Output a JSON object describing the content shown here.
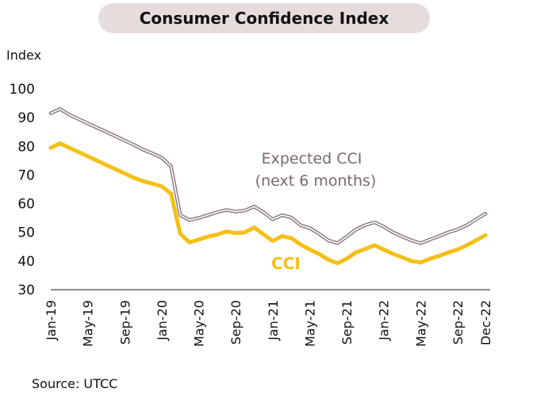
{
  "title": "Consumer Confidence Index",
  "source": "Source: UTCC",
  "chart_data": {
    "type": "line",
    "title": "Consumer Confidence Index",
    "xlabel": "",
    "ylabel": "Index",
    "ylim": [
      30,
      100
    ],
    "yticks": [
      30,
      40,
      50,
      60,
      70,
      80,
      90,
      100
    ],
    "grid": false,
    "x_tick_labels": [
      "Jan-19",
      "May-19",
      "Sep-19",
      "Jan-20",
      "May-20",
      "Sep-20",
      "Jan-21",
      "May-21",
      "Sep-21",
      "Jan-22",
      "May-22",
      "Sep-22",
      "Dec-22"
    ],
    "x": [
      "Jan-19",
      "Feb-19",
      "Mar-19",
      "Apr-19",
      "May-19",
      "Jun-19",
      "Jul-19",
      "Aug-19",
      "Sep-19",
      "Oct-19",
      "Nov-19",
      "Dec-19",
      "Jan-20",
      "Feb-20",
      "Mar-20",
      "Apr-20",
      "May-20",
      "Jun-20",
      "Jul-20",
      "Aug-20",
      "Sep-20",
      "Oct-20",
      "Nov-20",
      "Dec-20",
      "Jan-21",
      "Feb-21",
      "Mar-21",
      "Apr-21",
      "May-21",
      "Jun-21",
      "Jul-21",
      "Aug-21",
      "Sep-21",
      "Oct-21",
      "Nov-21",
      "Dec-21",
      "Jan-22",
      "Feb-22",
      "Mar-22",
      "Apr-22",
      "May-22",
      "Jun-22",
      "Jul-22",
      "Aug-22",
      "Sep-22",
      "Oct-22",
      "Nov-22",
      "Dec-22"
    ],
    "series": [
      {
        "name": "Expected CCI (next 6 months)",
        "label_line1": "Expected CCI",
        "label_line2": "(next 6 months)",
        "color": "#8a7a7a",
        "values": [
          91.5,
          93.0,
          91.0,
          89.5,
          88.0,
          86.5,
          85.0,
          83.5,
          82.0,
          80.5,
          78.8,
          77.5,
          76.0,
          73.0,
          56.0,
          54.3,
          55.0,
          56.0,
          57.0,
          57.8,
          57.2,
          57.6,
          59.0,
          57.0,
          54.5,
          56.0,
          55.2,
          52.5,
          51.5,
          49.5,
          47.2,
          46.2,
          48.5,
          51.0,
          52.5,
          53.5,
          52.0,
          50.0,
          48.5,
          47.2,
          46.2,
          47.5,
          48.7,
          50.0,
          51.0,
          52.5,
          54.5,
          56.5
        ]
      },
      {
        "name": "CCI",
        "label": "CCI",
        "color": "#f5c015",
        "values": [
          79.5,
          81.0,
          79.5,
          78.0,
          76.5,
          75.0,
          73.5,
          72.0,
          70.5,
          69.0,
          67.8,
          67.0,
          66.0,
          63.5,
          49.5,
          46.5,
          47.5,
          48.5,
          49.2,
          50.3,
          49.7,
          50.0,
          51.7,
          49.3,
          47.0,
          48.7,
          48.0,
          45.8,
          44.0,
          42.5,
          40.5,
          39.2,
          40.8,
          43.0,
          44.2,
          45.5,
          44.0,
          42.5,
          41.3,
          40.0,
          39.5,
          40.8,
          41.8,
          43.0,
          44.0,
          45.5,
          47.2,
          49.0
        ]
      }
    ]
  }
}
